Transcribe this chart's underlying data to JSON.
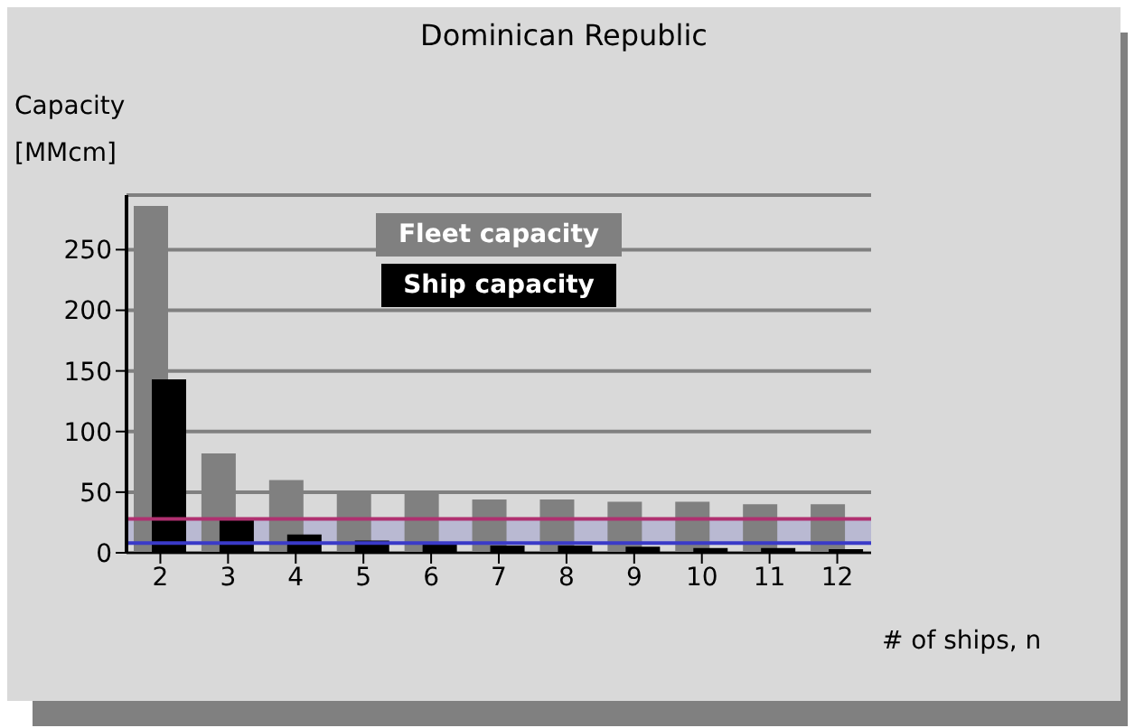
{
  "chart_data": {
    "type": "bar",
    "title": "Dominican Republic",
    "ylabel": "Capacity\n[MMcm]",
    "xlabel": "# of ships, n",
    "categories": [
      "2",
      "3",
      "4",
      "5",
      "6",
      "7",
      "8",
      "9",
      "10",
      "11",
      "12"
    ],
    "series": [
      {
        "name": "Fleet capacity",
        "color": "#808080",
        "values": [
          286,
          82,
          60,
          51,
          51,
          44,
          44,
          42,
          42,
          40,
          40
        ]
      },
      {
        "name": "Ship capacity",
        "color": "#000000",
        "values": [
          143,
          27,
          15,
          10,
          8,
          6,
          6,
          5,
          4,
          4,
          3
        ]
      }
    ],
    "ylim": [
      0,
      295
    ],
    "yticks": [
      0,
      50,
      100,
      150,
      200,
      250
    ],
    "grid": "y",
    "legend": "top",
    "bands": [
      {
        "axis": "y",
        "from": 8,
        "to": 28,
        "color": "#9a9acc"
      }
    ],
    "ref_lines": [
      {
        "axis": "y",
        "value": 28,
        "color": "#b03070"
      },
      {
        "axis": "y",
        "value": 8,
        "color": "#3a3ac8"
      }
    ]
  }
}
